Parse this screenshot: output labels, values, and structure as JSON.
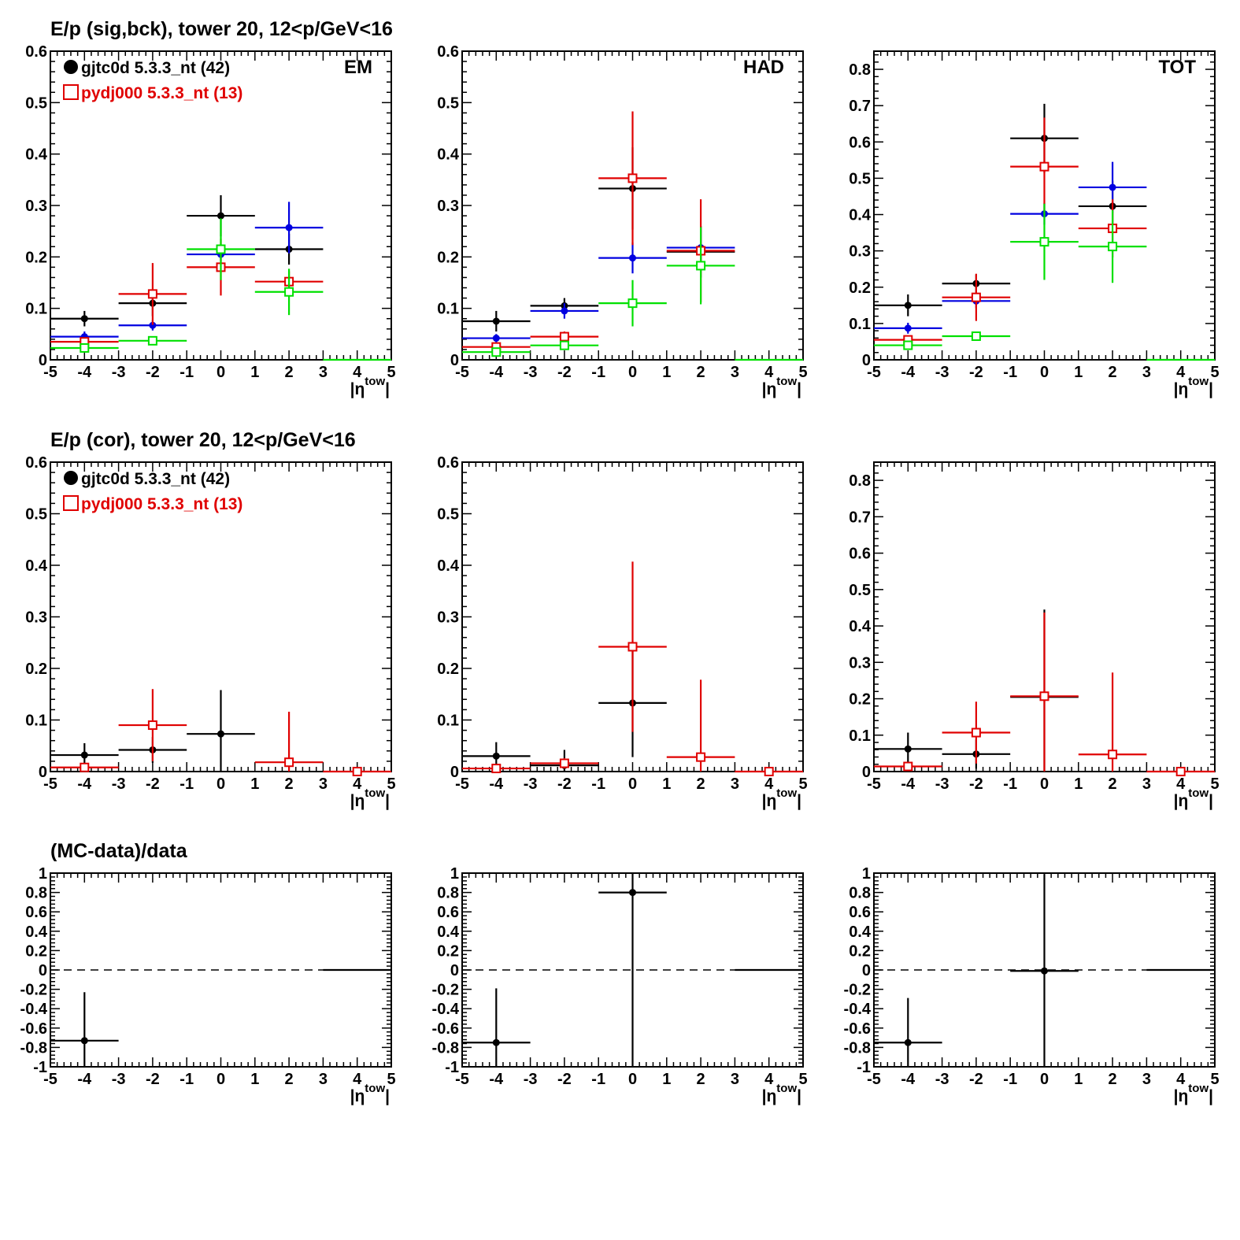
{
  "figure": {
    "background": "#ffffff",
    "series_colors": {
      "data": "#000000",
      "mc": "#e00000",
      "blue": "#0000e0",
      "green": "#00e000"
    }
  },
  "chart_data": [
    {
      "type": "scatter",
      "title": "E/p (sig,bck), tower 20, 12<p/GeV<16",
      "panel_label": "EM",
      "xlabel": "|η^tow|",
      "xlim": [
        -5,
        5
      ],
      "ylim": [
        0,
        0.6
      ],
      "yticks": [
        "0",
        "0.1",
        "0.2",
        "0.3",
        "0.4",
        "0.5",
        "0.6"
      ],
      "xticks": [
        "-5",
        "-4",
        "-3",
        "-2",
        "-1",
        "0",
        "1",
        "2",
        "3",
        "4",
        "5"
      ],
      "legend": [
        {
          "label": "gjtc0d 5.3.3_nt (42)",
          "color": "#000000",
          "marker": "dot-big"
        },
        {
          "label": "pydj000 5.3.3_nt (13)",
          "color": "#e00000",
          "marker": "open-square"
        }
      ],
      "series": [
        {
          "color": "#000000",
          "marker": "dot",
          "x": [
            -4,
            -2,
            0,
            2
          ],
          "y": [
            0.08,
            0.11,
            0.28,
            0.215
          ],
          "yerr": [
            0.015,
            0.025,
            0.04,
            0.03
          ]
        },
        {
          "color": "#0000e0",
          "marker": "dot",
          "x": [
            -4,
            -2,
            0,
            2
          ],
          "y": [
            0.045,
            0.067,
            0.205,
            0.257
          ],
          "yerr": [
            0.01,
            0.01,
            0.012,
            0.05
          ]
        },
        {
          "color": "#e00000",
          "marker": "open-square",
          "x": [
            -4,
            -2,
            0,
            2
          ],
          "y": [
            0.035,
            0.128,
            0.18,
            0.152
          ],
          "yerr": [
            0.005,
            0.06,
            0.055,
            0.02
          ]
        },
        {
          "color": "#00e000",
          "marker": "open-square",
          "x": [
            -4,
            -2,
            0,
            2
          ],
          "y": [
            0.023,
            0.037,
            0.215,
            0.132
          ],
          "yerr": [
            0.005,
            0.005,
            0.06,
            0.045
          ]
        },
        {
          "color": "#00e000",
          "marker": "none",
          "x": [
            4
          ],
          "y": [
            0
          ],
          "yerr": [
            0
          ]
        }
      ]
    },
    {
      "type": "scatter",
      "title": "",
      "panel_label": "HAD",
      "xlabel": "|η^tow|",
      "xlim": [
        -5,
        5
      ],
      "ylim": [
        0,
        0.6
      ],
      "yticks": [
        "0",
        "0.1",
        "0.2",
        "0.3",
        "0.4",
        "0.5",
        "0.6"
      ],
      "xticks": [
        "-5",
        "-4",
        "-3",
        "-2",
        "-1",
        "0",
        "1",
        "2",
        "3",
        "4",
        "5"
      ],
      "series": [
        {
          "color": "#000000",
          "marker": "dot",
          "x": [
            -4,
            -2,
            0,
            2
          ],
          "y": [
            0.075,
            0.105,
            0.333,
            0.21
          ],
          "yerr": [
            0.02,
            0.015,
            0.08,
            0.05
          ]
        },
        {
          "color": "#0000e0",
          "marker": "dot",
          "x": [
            -4,
            -2,
            0,
            2
          ],
          "y": [
            0.042,
            0.095,
            0.198,
            0.218
          ],
          "yerr": [
            0.008,
            0.015,
            0.03,
            0.04
          ]
        },
        {
          "color": "#e00000",
          "marker": "open-square",
          "x": [
            -4,
            -2,
            0,
            2
          ],
          "y": [
            0.025,
            0.045,
            0.353,
            0.212
          ],
          "yerr": [
            0.005,
            0.01,
            0.13,
            0.1
          ]
        },
        {
          "color": "#00e000",
          "marker": "open-square",
          "x": [
            -4,
            -2,
            0,
            2
          ],
          "y": [
            0.015,
            0.028,
            0.11,
            0.183
          ],
          "yerr": [
            0.005,
            0.005,
            0.045,
            0.075
          ]
        },
        {
          "color": "#00e000",
          "marker": "none",
          "x": [
            4
          ],
          "y": [
            0
          ],
          "yerr": [
            0
          ]
        }
      ]
    },
    {
      "type": "scatter",
      "title": "",
      "panel_label": "TOT",
      "xlabel": "|η^tow|",
      "xlim": [
        -5,
        5
      ],
      "ylim": [
        0,
        0.85
      ],
      "yticks": [
        "0",
        "0.1",
        "0.2",
        "0.3",
        "0.4",
        "0.5",
        "0.6",
        "0.7",
        "0.8"
      ],
      "xticks": [
        "-5",
        "-4",
        "-3",
        "-2",
        "-1",
        "0",
        "1",
        "2",
        "3",
        "4",
        "5"
      ],
      "series": [
        {
          "color": "#000000",
          "marker": "dot",
          "x": [
            -4,
            -2,
            0,
            2
          ],
          "y": [
            0.15,
            0.21,
            0.61,
            0.423
          ],
          "yerr": [
            0.03,
            0.025,
            0.095,
            0.07
          ]
        },
        {
          "color": "#0000e0",
          "marker": "dot",
          "x": [
            -4,
            -2,
            0,
            2
          ],
          "y": [
            0.087,
            0.162,
            0.402,
            0.475
          ],
          "yerr": [
            0.015,
            0.02,
            0.03,
            0.07
          ]
        },
        {
          "color": "#e00000",
          "marker": "open-square",
          "x": [
            -4,
            -2,
            0,
            2
          ],
          "y": [
            0.055,
            0.172,
            0.532,
            0.362
          ],
          "yerr": [
            0.01,
            0.065,
            0.135,
            0.08
          ]
        },
        {
          "color": "#00e000",
          "marker": "open-square",
          "x": [
            -4,
            -2,
            0,
            2
          ],
          "y": [
            0.04,
            0.065,
            0.325,
            0.312
          ],
          "yerr": [
            0.008,
            0.008,
            0.105,
            0.1
          ]
        },
        {
          "color": "#00e000",
          "marker": "none",
          "x": [
            4
          ],
          "y": [
            0
          ],
          "yerr": [
            0
          ]
        }
      ]
    },
    {
      "type": "scatter",
      "title": "E/p (cor), tower 20, 12<p/GeV<16",
      "panel_label": "",
      "xlabel": "|η^tow|",
      "xlim": [
        -5,
        5
      ],
      "ylim": [
        0,
        0.6
      ],
      "yticks": [
        "0",
        "0.1",
        "0.2",
        "0.3",
        "0.4",
        "0.5",
        "0.6"
      ],
      "xticks": [
        "-5",
        "-4",
        "-3",
        "-2",
        "-1",
        "0",
        "1",
        "2",
        "3",
        "4",
        "5"
      ],
      "legend": [
        {
          "label": "gjtc0d 5.3.3_nt (42)",
          "color": "#000000",
          "marker": "dot-big"
        },
        {
          "label": "pydj000 5.3.3_nt (13)",
          "color": "#e00000",
          "marker": "open-square"
        }
      ],
      "series": [
        {
          "color": "#000000",
          "marker": "dot",
          "x": [
            -4,
            -2,
            0
          ],
          "y": [
            0.032,
            0.042,
            0.073
          ],
          "yerr": [
            0.023,
            0.025,
            0.085
          ]
        },
        {
          "color": "#e00000",
          "marker": "open-square",
          "x": [
            -4,
            -2,
            2,
            4
          ],
          "y": [
            0.008,
            0.09,
            0.018,
            0.0
          ],
          "yerr": [
            0.005,
            0.07,
            0.098,
            0
          ]
        }
      ]
    },
    {
      "type": "scatter",
      "title": "",
      "panel_label": "",
      "xlabel": "|η^tow|",
      "xlim": [
        -5,
        5
      ],
      "ylim": [
        0,
        0.6
      ],
      "yticks": [
        "0",
        "0.1",
        "0.2",
        "0.3",
        "0.4",
        "0.5",
        "0.6"
      ],
      "xticks": [
        "-5",
        "-4",
        "-3",
        "-2",
        "-1",
        "0",
        "1",
        "2",
        "3",
        "4",
        "5"
      ],
      "series": [
        {
          "color": "#000000",
          "marker": "dot",
          "x": [
            -4,
            -2,
            0
          ],
          "y": [
            0.03,
            0.012,
            0.133
          ],
          "yerr": [
            0.027,
            0.03,
            0.105
          ]
        },
        {
          "color": "#e00000",
          "marker": "open-square",
          "x": [
            -4,
            -2,
            0,
            2,
            4
          ],
          "y": [
            0.006,
            0.016,
            0.242,
            0.028,
            0.0
          ],
          "yerr": [
            0.005,
            0.01,
            0.165,
            0.15,
            0
          ]
        }
      ]
    },
    {
      "type": "scatter",
      "title": "",
      "panel_label": "",
      "xlabel": "|η^tow|",
      "xlim": [
        -5,
        5
      ],
      "ylim": [
        0,
        0.85
      ],
      "yticks": [
        "0",
        "0.1",
        "0.2",
        "0.3",
        "0.4",
        "0.5",
        "0.6",
        "0.7",
        "0.8"
      ],
      "xticks": [
        "-5",
        "-4",
        "-3",
        "-2",
        "-1",
        "0",
        "1",
        "2",
        "3",
        "4",
        "5"
      ],
      "series": [
        {
          "color": "#000000",
          "marker": "dot",
          "x": [
            -4,
            -2,
            0
          ],
          "y": [
            0.062,
            0.048,
            0.205
          ],
          "yerr": [
            0.045,
            0.04,
            0.24
          ]
        },
        {
          "color": "#e00000",
          "marker": "open-square",
          "x": [
            -4,
            -2,
            0,
            2,
            4
          ],
          "y": [
            0.014,
            0.107,
            0.207,
            0.047,
            0.0
          ],
          "yerr": [
            0.01,
            0.085,
            0.23,
            0.225,
            0
          ]
        }
      ]
    },
    {
      "type": "scatter",
      "title": "(MC-data)/data",
      "panel_label": "",
      "xlabel": "|η^tow|",
      "xlim": [
        -5,
        5
      ],
      "ylim": [
        -1,
        1
      ],
      "reference_line": 0,
      "yticks": [
        "-1",
        "-0.8",
        "-0.6",
        "-0.4",
        "-0.2",
        "0",
        "0.2",
        "0.4",
        "0.6",
        "0.8",
        "1"
      ],
      "xticks": [
        "-5",
        "-4",
        "-3",
        "-2",
        "-1",
        "0",
        "1",
        "2",
        "3",
        "4",
        "5"
      ],
      "series": [
        {
          "color": "#000000",
          "marker": "dot",
          "x": [
            -4
          ],
          "y": [
            -0.73
          ],
          "yerr": [
            0.5
          ]
        },
        {
          "color": "#000000",
          "marker": "none",
          "x": [
            4
          ],
          "y": [
            0
          ],
          "yerr": [
            0
          ]
        }
      ]
    },
    {
      "type": "scatter",
      "title": "",
      "panel_label": "",
      "xlabel": "|η^tow|",
      "xlim": [
        -5,
        5
      ],
      "ylim": [
        -1,
        1
      ],
      "reference_line": 0,
      "yticks": [
        "-1",
        "-0.8",
        "-0.6",
        "-0.4",
        "-0.2",
        "0",
        "0.2",
        "0.4",
        "0.6",
        "0.8",
        "1"
      ],
      "xticks": [
        "-5",
        "-4",
        "-3",
        "-2",
        "-1",
        "0",
        "1",
        "2",
        "3",
        "4",
        "5"
      ],
      "series": [
        {
          "color": "#000000",
          "marker": "dot",
          "x": [
            -4,
            0
          ],
          "y": [
            -0.75,
            0.8
          ],
          "yerr": [
            0.56,
            1.8
          ]
        },
        {
          "color": "#000000",
          "marker": "none",
          "x": [
            4
          ],
          "y": [
            0
          ],
          "yerr": [
            0
          ]
        }
      ]
    },
    {
      "type": "scatter",
      "title": "",
      "panel_label": "",
      "xlabel": "|η^tow|",
      "xlim": [
        -5,
        5
      ],
      "ylim": [
        -1,
        1
      ],
      "reference_line": 0,
      "yticks": [
        "-1",
        "-0.8",
        "-0.6",
        "-0.4",
        "-0.2",
        "0",
        "0.2",
        "0.4",
        "0.6",
        "0.8",
        "1"
      ],
      "xticks": [
        "-5",
        "-4",
        "-3",
        "-2",
        "-1",
        "0",
        "1",
        "2",
        "3",
        "4",
        "5"
      ],
      "series": [
        {
          "color": "#000000",
          "marker": "dot",
          "x": [
            -4,
            0
          ],
          "y": [
            -0.75,
            -0.01
          ],
          "yerr": [
            0.46,
            1.0
          ]
        },
        {
          "color": "#000000",
          "marker": "none",
          "x": [
            4
          ],
          "y": [
            0
          ],
          "yerr": [
            0
          ]
        }
      ]
    }
  ]
}
